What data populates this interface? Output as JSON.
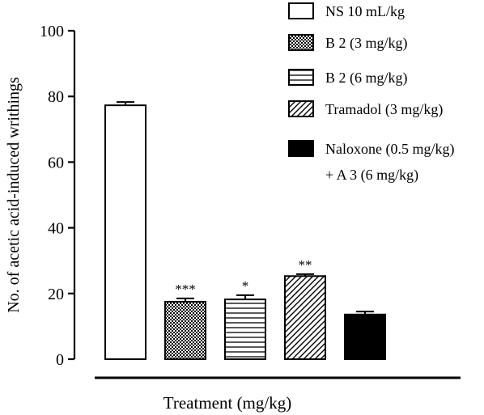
{
  "chart_data": {
    "type": "bar",
    "title": "",
    "xlabel": "Treatment (mg/kg)",
    "ylabel": "No. of acetic acid-induced writhings",
    "ylim": [
      0,
      100
    ],
    "yticks": [
      0,
      20,
      40,
      60,
      80,
      100
    ],
    "grid": false,
    "legend_position": "top-right",
    "categories": [
      "NS 10 mL/kg",
      "B 2 (3 mg/kg)",
      "B 2 (6 mg/kg)",
      "Tramadol (3 mg/kg)",
      "Naloxone (0.5 mg/kg) + A 3 (6 mg/kg)"
    ],
    "values": [
      77.3,
      17.5,
      18.2,
      25.3,
      13.6
    ],
    "errors": [
      1.0,
      1.0,
      1.3,
      0.6,
      0.9
    ],
    "significance": [
      "",
      "***",
      "*",
      "**",
      ""
    ],
    "legend": [
      {
        "lines": [
          "NS 10 mL/kg"
        ],
        "pattern": "white"
      },
      {
        "lines": [
          "B 2 (3 mg/kg)"
        ],
        "pattern": "checker"
      },
      {
        "lines": [
          "B 2 (6 mg/kg)"
        ],
        "pattern": "hlines"
      },
      {
        "lines": [
          "Tramadol (3 mg/kg)"
        ],
        "pattern": "diag"
      },
      {
        "lines": [
          "Naloxone (0.5 mg/kg)",
          "+ A 3 (6 mg/kg)"
        ],
        "pattern": "black"
      }
    ],
    "colors": {
      "stroke": "#000000",
      "fill_white": "#ffffff",
      "fill_black": "#000000"
    }
  }
}
